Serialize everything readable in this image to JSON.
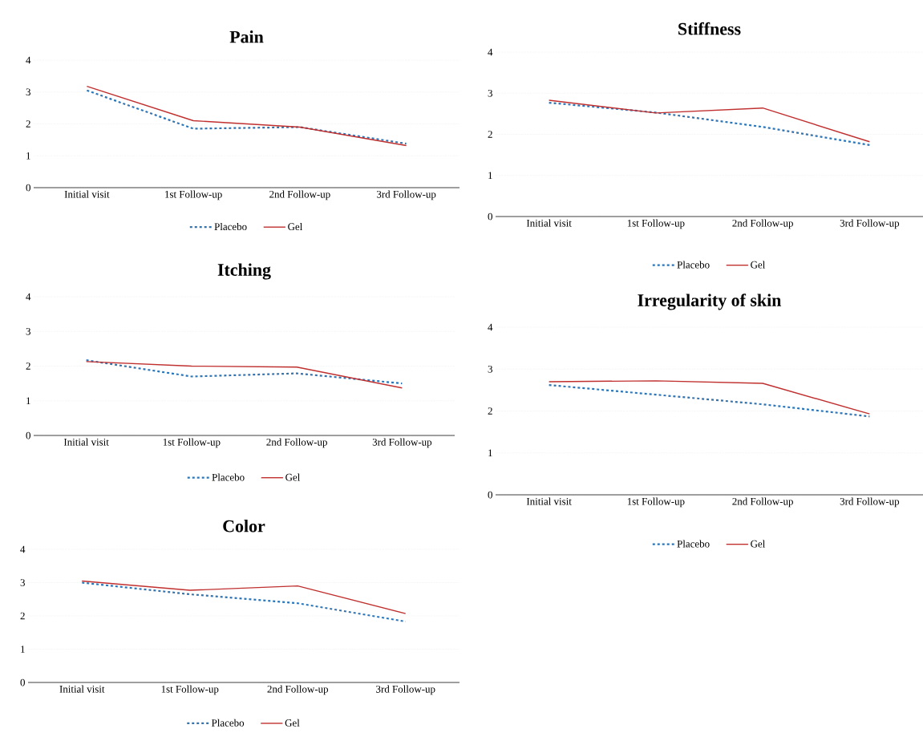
{
  "chart_data": [
    {
      "type": "line",
      "title": "Pain",
      "categories": [
        "Initial visit",
        "1st Follow-up",
        "2nd Follow-up",
        "3rd Follow-up"
      ],
      "ylim": [
        0,
        4
      ],
      "yticks": [
        0,
        1,
        2,
        3,
        4
      ],
      "grid": "y",
      "legend": "bottom",
      "series": [
        {
          "name": "Placebo",
          "color": "#2e75b6",
          "line_style": "dashed",
          "values": [
            3.05,
            1.85,
            1.9,
            1.38
          ]
        },
        {
          "name": "Gel",
          "color": "#c0302f",
          "line_style": "solid",
          "values": [
            3.18,
            2.1,
            1.9,
            1.32
          ]
        }
      ]
    },
    {
      "type": "line",
      "title": "Stiffness",
      "categories": [
        "Initial visit",
        "1st Follow-up",
        "2nd Follow-up",
        "3rd Follow-up"
      ],
      "ylim": [
        0,
        4
      ],
      "yticks": [
        0,
        1,
        2,
        3,
        4
      ],
      "grid": "y",
      "legend": "bottom",
      "series": [
        {
          "name": "Placebo",
          "color": "#2e75b6",
          "line_style": "dashed",
          "values": [
            2.77,
            2.53,
            2.18,
            1.74
          ]
        },
        {
          "name": "Gel",
          "color": "#c0302f",
          "line_style": "solid",
          "values": [
            2.83,
            2.52,
            2.64,
            1.82
          ]
        }
      ]
    },
    {
      "type": "line",
      "title": "Itching",
      "categories": [
        "Initial visit",
        "1st Follow-up",
        "2nd Follow-up",
        "3rd Follow-up"
      ],
      "ylim": [
        0,
        4
      ],
      "yticks": [
        0,
        1,
        2,
        3,
        4
      ],
      "grid": "y",
      "legend": "bottom",
      "series": [
        {
          "name": "Placebo",
          "color": "#2e75b6",
          "line_style": "dashed",
          "values": [
            2.17,
            1.7,
            1.79,
            1.5
          ]
        },
        {
          "name": "Gel",
          "color": "#c0302f",
          "line_style": "solid",
          "values": [
            2.13,
            2.0,
            1.97,
            1.37
          ]
        }
      ]
    },
    {
      "type": "line",
      "title": "Irregularity of skin",
      "categories": [
        "Initial visit",
        "1st Follow-up",
        "2nd Follow-up",
        "3rd Follow-up"
      ],
      "ylim": [
        0,
        4
      ],
      "yticks": [
        0,
        1,
        2,
        3,
        4
      ],
      "grid": "y",
      "legend": "bottom",
      "series": [
        {
          "name": "Placebo",
          "color": "#2e75b6",
          "line_style": "dashed",
          "values": [
            2.62,
            2.39,
            2.16,
            1.87
          ]
        },
        {
          "name": "Gel",
          "color": "#c0302f",
          "line_style": "solid",
          "values": [
            2.7,
            2.72,
            2.66,
            1.93
          ]
        }
      ]
    },
    {
      "type": "line",
      "title": "Color",
      "categories": [
        "Initial visit",
        "1st Follow-up",
        "2nd Follow-up",
        "3rd Follow-up"
      ],
      "ylim": [
        0,
        4
      ],
      "yticks": [
        0,
        1,
        2,
        3,
        4
      ],
      "grid": "y",
      "legend": "bottom",
      "series": [
        {
          "name": "Placebo",
          "color": "#2e75b6",
          "line_style": "dashed",
          "values": [
            3.0,
            2.65,
            2.38,
            1.83
          ]
        },
        {
          "name": "Gel",
          "color": "#c0302f",
          "line_style": "solid",
          "values": [
            3.05,
            2.77,
            2.9,
            2.07
          ]
        }
      ]
    }
  ]
}
